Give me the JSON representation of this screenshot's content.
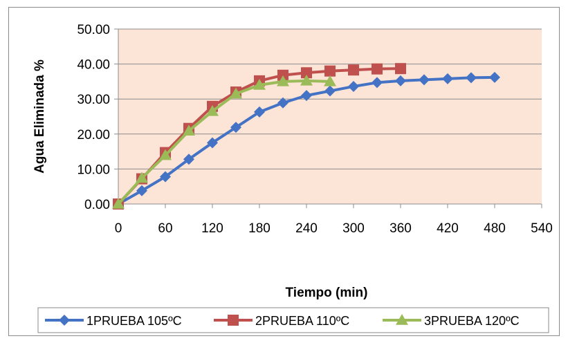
{
  "chart_data": {
    "type": "line",
    "title": "",
    "xlabel": "Tiempo (min)",
    "ylabel": "Agua Eliminada %",
    "xlim": [
      0,
      540
    ],
    "ylim": [
      0,
      50
    ],
    "x_ticks": [
      0,
      60,
      120,
      180,
      240,
      300,
      360,
      420,
      480,
      540
    ],
    "y_ticks": [
      "0.00",
      "10.00",
      "20.00",
      "30.00",
      "40.00",
      "50.00"
    ],
    "grid": "horizontal",
    "legend": "bottom",
    "plot_background": "#FCE4D6",
    "series": [
      {
        "name": "1PRUEBA 105ºC",
        "color": "#4472C4",
        "marker": "diamond",
        "x": [
          0,
          30,
          60,
          90,
          120,
          150,
          180,
          210,
          240,
          270,
          300,
          330,
          360,
          390,
          420,
          450,
          480
        ],
        "y": [
          0,
          3.8,
          7.8,
          12.8,
          17.5,
          21.9,
          26.3,
          28.9,
          31.0,
          32.3,
          33.6,
          34.7,
          35.2,
          35.5,
          35.8,
          36.1,
          36.2
        ]
      },
      {
        "name": "2PRUEBA 110ºC",
        "color": "#C0504D",
        "marker": "square",
        "x": [
          0,
          30,
          60,
          90,
          120,
          150,
          180,
          210,
          240,
          270,
          300,
          330,
          360
        ],
        "y": [
          0,
          7.2,
          14.7,
          21.6,
          27.9,
          32.0,
          35.2,
          36.8,
          37.5,
          38.0,
          38.3,
          38.6,
          38.7
        ]
      },
      {
        "name": "3PRUEBA 120ºC",
        "color": "#9BBB59",
        "marker": "triangle",
        "x": [
          0,
          30,
          60,
          90,
          120,
          150,
          180,
          210,
          240,
          270
        ],
        "y": [
          0,
          7.4,
          13.9,
          20.9,
          26.5,
          31.5,
          34.0,
          35.0,
          35.2,
          35.0
        ]
      }
    ]
  }
}
